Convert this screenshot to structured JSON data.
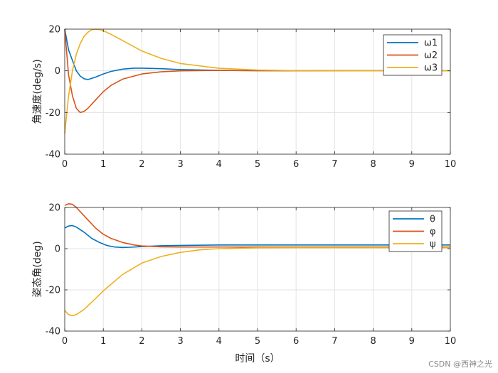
{
  "chart_data": [
    {
      "type": "line",
      "title": "",
      "xlabel": "",
      "ylabel": "角速度(deg/s)",
      "xlim": [
        0,
        10
      ],
      "ylim": [
        -40,
        20
      ],
      "xticks": [
        0,
        1,
        2,
        3,
        4,
        5,
        6,
        7,
        8,
        9,
        10
      ],
      "yticks": [
        20,
        0,
        -20,
        -40
      ],
      "grid": true,
      "legend_position": "top-right",
      "series": [
        {
          "name": "ω1",
          "color": "#0072BD",
          "x": [
            0,
            0.1,
            0.2,
            0.3,
            0.4,
            0.5,
            0.6,
            0.8,
            1.0,
            1.2,
            1.5,
            1.8,
            2.0,
            2.5,
            3.0,
            4.0,
            5.0,
            10
          ],
          "y": [
            20,
            10,
            5,
            0,
            -2.5,
            -3.8,
            -4.2,
            -3,
            -1.5,
            -0.3,
            0.8,
            1.3,
            1.3,
            1.0,
            0.6,
            0.2,
            0.1,
            0
          ]
        },
        {
          "name": "ω2",
          "color": "#D95319",
          "x": [
            0,
            0.1,
            0.2,
            0.3,
            0.4,
            0.5,
            0.6,
            0.8,
            1.0,
            1.2,
            1.5,
            2.0,
            2.5,
            3.0,
            4.0,
            5.0,
            10
          ],
          "y": [
            20,
            -2,
            -12,
            -18,
            -20,
            -19.5,
            -18,
            -14,
            -10,
            -7,
            -4,
            -1.5,
            -0.5,
            0,
            0.2,
            0.1,
            0
          ]
        },
        {
          "name": "ω3",
          "color": "#EDB120",
          "x": [
            0,
            0.1,
            0.2,
            0.3,
            0.4,
            0.5,
            0.6,
            0.7,
            0.8,
            0.9,
            1.0,
            1.2,
            1.5,
            2.0,
            2.5,
            3.0,
            4.0,
            5.0,
            6.0,
            8.0,
            10
          ],
          "y": [
            -30,
            -12,
            0,
            8,
            13,
            16.5,
            18.5,
            19.7,
            20,
            19.8,
            19.3,
            17.5,
            14.5,
            9.5,
            6,
            3.5,
            1.2,
            0.4,
            0.1,
            0,
            0
          ]
        }
      ]
    },
    {
      "type": "line",
      "title": "",
      "xlabel": "时间（s）",
      "ylabel": "姿态角(deg)",
      "xlim": [
        0,
        10
      ],
      "ylim": [
        -40,
        20
      ],
      "xticks": [
        0,
        1,
        2,
        3,
        4,
        5,
        6,
        7,
        8,
        9,
        10
      ],
      "yticks": [
        20,
        0,
        -20,
        -40
      ],
      "grid": true,
      "legend_position": "top-right",
      "series": [
        {
          "name": "θ",
          "color": "#0072BD",
          "x": [
            0,
            0.1,
            0.2,
            0.3,
            0.5,
            0.7,
            0.9,
            1.1,
            1.3,
            1.5,
            1.7,
            2.0,
            2.5,
            3.0,
            4.0,
            5.0,
            6.0,
            7.0,
            8.0,
            10
          ],
          "y": [
            10,
            11,
            11.2,
            10.5,
            8,
            5,
            3,
            1.5,
            0.8,
            0.6,
            0.7,
            1.0,
            1.4,
            1.6,
            1.8,
            1.8,
            1.8,
            1.8,
            1.8,
            1.8
          ]
        },
        {
          "name": "φ",
          "color": "#D95319",
          "x": [
            0,
            0.1,
            0.2,
            0.3,
            0.4,
            0.6,
            0.8,
            1.0,
            1.2,
            1.5,
            1.8,
            2.0,
            2.5,
            3.0,
            4.0,
            5.0,
            6.0,
            8.0,
            10
          ],
          "y": [
            21,
            21.8,
            21.5,
            20,
            18,
            14,
            10,
            7,
            5,
            3,
            1.8,
            1.3,
            0.9,
            0.8,
            0.8,
            0.8,
            0.8,
            0.8,
            0.8
          ]
        },
        {
          "name": "ψ",
          "color": "#EDB120",
          "x": [
            0,
            0.1,
            0.2,
            0.3,
            0.5,
            0.7,
            1.0,
            1.5,
            2.0,
            2.5,
            3.0,
            3.5,
            4.0,
            5.0,
            6.0,
            8.0,
            10
          ],
          "y": [
            -30,
            -32,
            -32.5,
            -32,
            -29.5,
            -26,
            -20.5,
            -12.5,
            -7,
            -3.8,
            -1.8,
            -0.6,
            0,
            0.4,
            0.5,
            0.5,
            0.5
          ]
        }
      ]
    }
  ],
  "watermark": "CSDN @西神之光"
}
